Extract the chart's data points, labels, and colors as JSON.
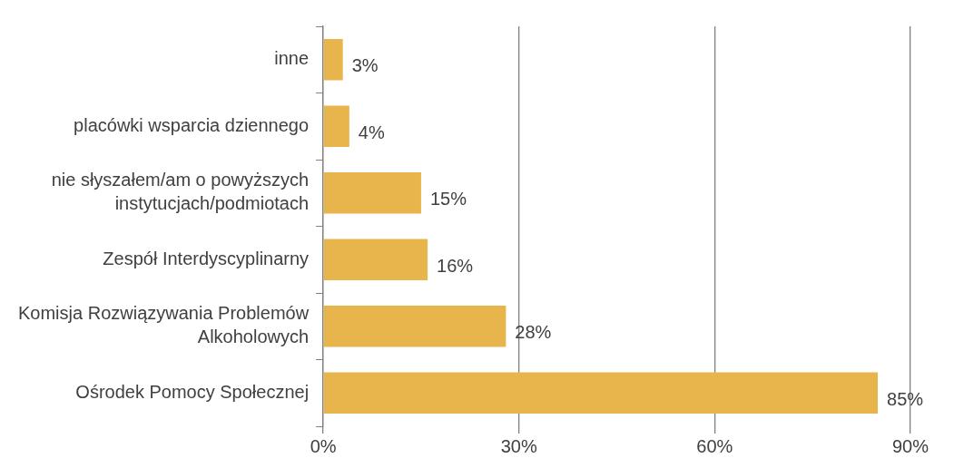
{
  "chart_data": {
    "type": "bar",
    "orientation": "horizontal",
    "categories": [
      "inne",
      "placówki wsparcia dziennego",
      "nie słyszałem/am o powyższych instytucjach/podmiotach",
      "Zespół Interdyscyplinarny",
      "Komisja Rozwiązywania Problemów Alkoholowych",
      "Ośrodek Pomocy Społecznej"
    ],
    "values": [
      3,
      4,
      15,
      16,
      28,
      85
    ],
    "value_labels": [
      "3%",
      "4%",
      "15%",
      "16%",
      "28%",
      "85%"
    ],
    "color": "#e8b44c",
    "xlim": [
      0,
      90
    ],
    "xticks": [
      {
        "value": 0,
        "label": "0%"
      },
      {
        "value": 30,
        "label": "30%"
      },
      {
        "value": 60,
        "label": "60%"
      },
      {
        "value": 90,
        "label": "90%"
      }
    ],
    "grid": "x",
    "legend": false
  }
}
